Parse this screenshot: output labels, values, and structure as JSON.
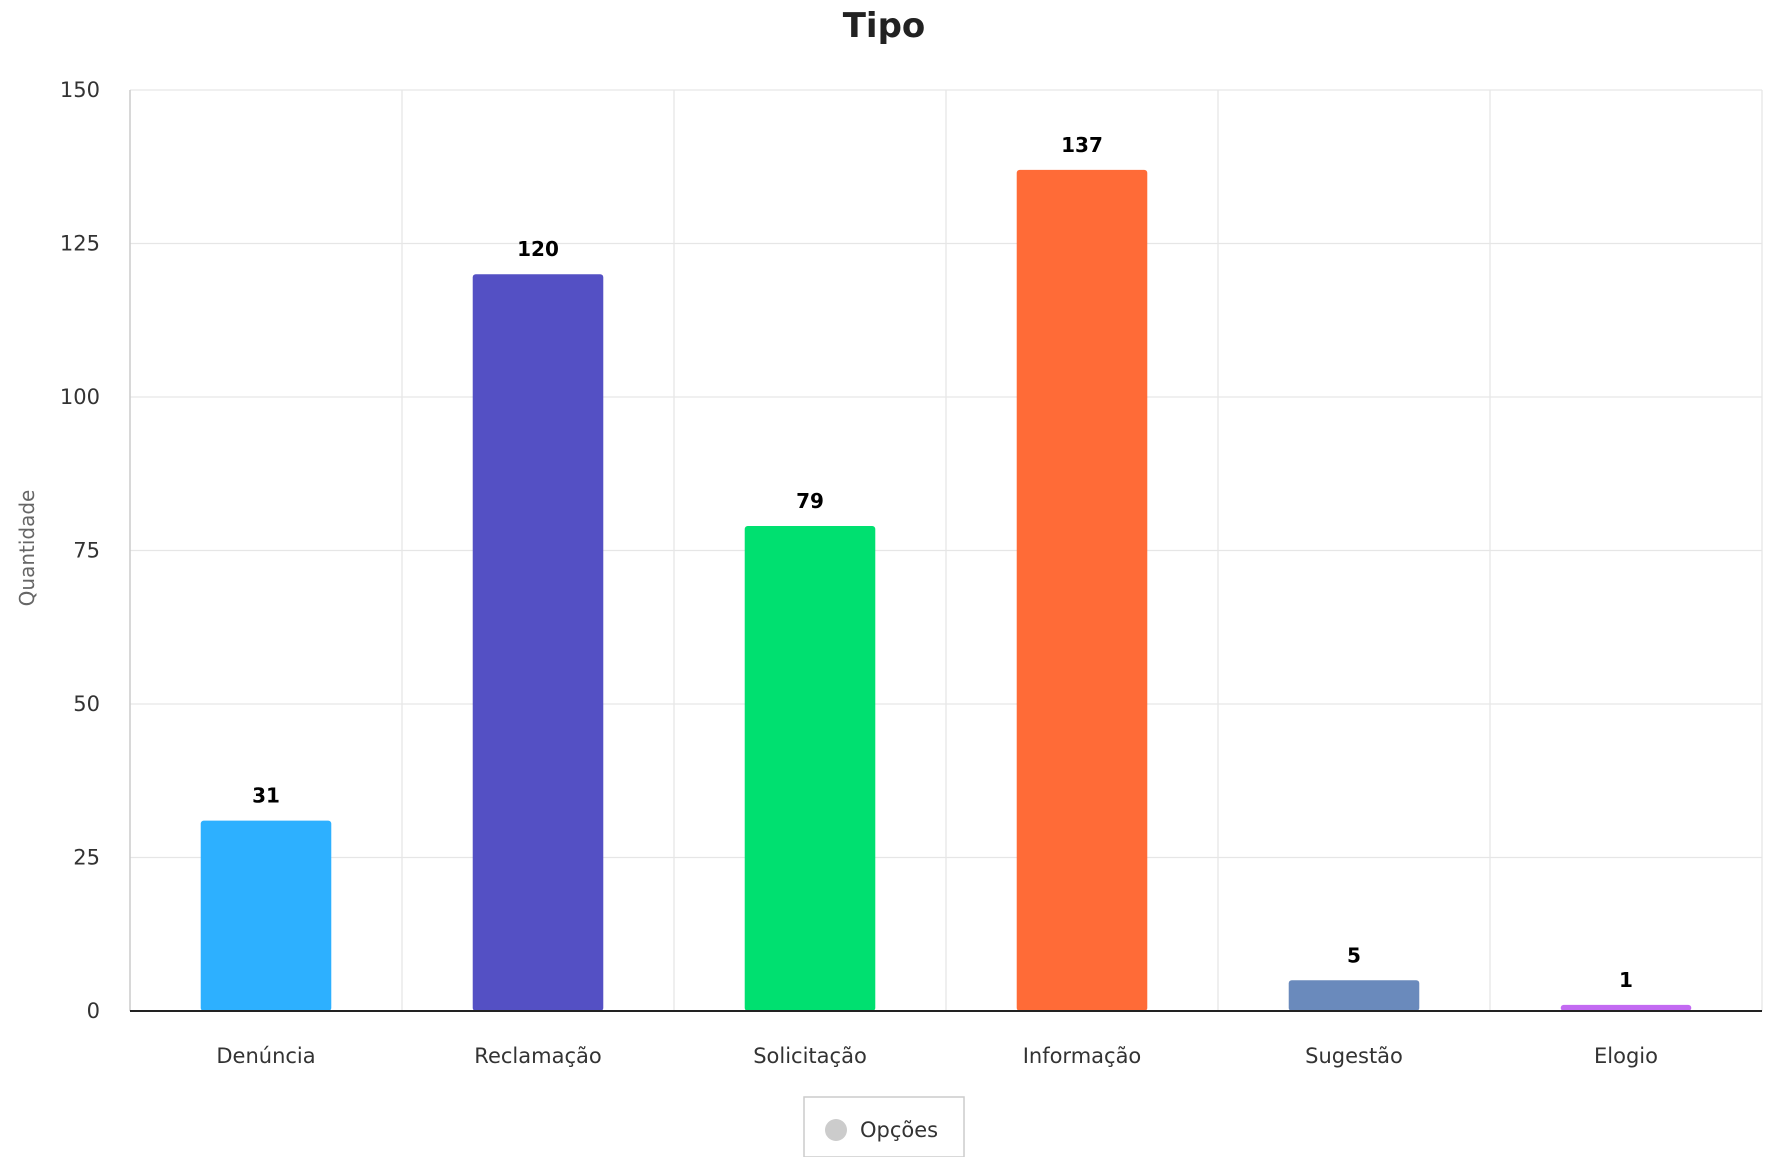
{
  "chart_data": {
    "type": "bar",
    "title": "Tipo",
    "xlabel": "",
    "ylabel": "Quantidade",
    "categories": [
      "Denúncia",
      "Reclamação",
      "Solicitação",
      "Informação",
      "Sugestão",
      "Elogio"
    ],
    "values": [
      31,
      120,
      79,
      137,
      5,
      1
    ],
    "colors": [
      "#2db0ff",
      "#5450c4",
      "#00e070",
      "#ff6b37",
      "#6a8abc",
      "#c36af2"
    ],
    "ylim": [
      0,
      150
    ],
    "yticks": [
      0,
      25,
      50,
      75,
      100,
      125,
      150
    ],
    "grid": true,
    "data_labels": true,
    "legend": {
      "position": "bottom-center",
      "label": "Opções",
      "marker_color": "#cccccc"
    }
  }
}
